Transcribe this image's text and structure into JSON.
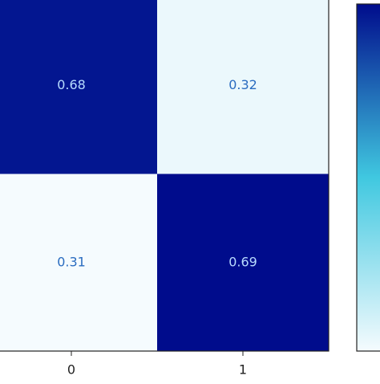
{
  "chart_data": {
    "type": "heatmap",
    "categories": [
      "0",
      "1"
    ],
    "rows": [
      null,
      null
    ],
    "values": [
      [
        0.68,
        0.32
      ],
      [
        0.31,
        0.69
      ]
    ],
    "clim": [
      0.31,
      0.69
    ],
    "colormap": [
      "#f5fbfe",
      "#40c8e0",
      "#000c8c"
    ]
  }
}
